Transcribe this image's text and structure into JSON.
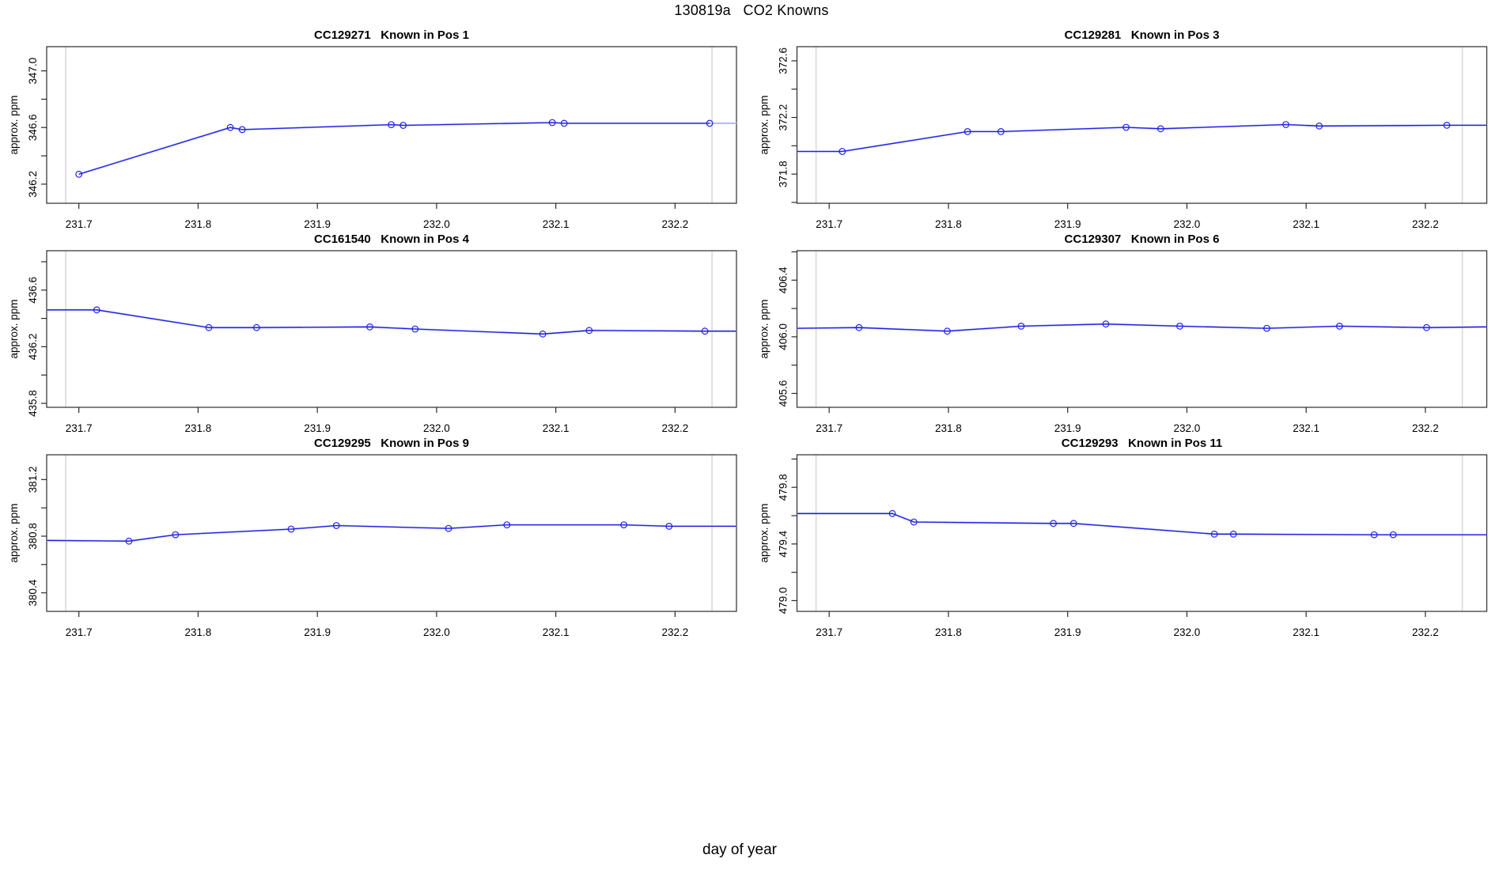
{
  "figure": {
    "main_title": "130819a   CO2 Knowns",
    "x_axis_label": "day of year",
    "colors": {
      "line": "#2121e6",
      "pale_line": "#b7bef4",
      "marker": "#2121e6",
      "boundary": "#d9d9d9",
      "box": "#2b2b2b",
      "text": "#000000"
    }
  },
  "chart_data": [
    {
      "type": "line",
      "id": "CC129271",
      "title": "CC129271   Known in Pos 1",
      "ylabel": "approx. ppm",
      "ylim": [
        346.065,
        347.171
      ],
      "ytick_labels": [
        {
          "value": 346.2,
          "label": "346.2"
        },
        {
          "value": 346.6,
          "label": "346.6"
        },
        {
          "value": 347.0,
          "label": "347.0"
        }
      ],
      "xticks": [
        {
          "value": 231.7,
          "label": "231.7"
        },
        {
          "value": 231.8,
          "label": "231.8"
        },
        {
          "value": 231.9,
          "label": "231.9"
        },
        {
          "value": 232.0,
          "label": "232.0"
        },
        {
          "value": 232.1,
          "label": "232.1"
        },
        {
          "value": 232.2,
          "label": "232.2"
        }
      ],
      "boundaries_x": [
        231.689,
        232.231
      ],
      "left_edge": null,
      "right_edge": 346.63,
      "right_edge_pale": true,
      "points": [
        [
          231.7,
          346.27
        ],
        [
          231.827,
          346.6
        ],
        [
          231.837,
          346.585
        ],
        [
          231.962,
          346.62
        ],
        [
          231.972,
          346.615
        ],
        [
          232.097,
          346.635
        ],
        [
          232.107,
          346.63
        ],
        [
          232.229,
          346.63
        ]
      ]
    },
    {
      "type": "line",
      "id": "CC129281",
      "title": "CC129281   Known in Pos 3",
      "ylabel": "approx. ppm",
      "ylim": [
        371.594,
        372.7
      ],
      "ytick_labels": [
        {
          "value": 371.8,
          "label": "371.8"
        },
        {
          "value": 372.2,
          "label": "372.2"
        },
        {
          "value": 372.6,
          "label": "372.6"
        }
      ],
      "xticks": [
        {
          "value": 231.7,
          "label": "231.7"
        },
        {
          "value": 231.8,
          "label": "231.8"
        },
        {
          "value": 231.9,
          "label": "231.9"
        },
        {
          "value": 232.0,
          "label": "232.0"
        },
        {
          "value": 232.1,
          "label": "232.1"
        },
        {
          "value": 232.2,
          "label": "232.2"
        }
      ],
      "boundaries_x": [
        231.689,
        232.231
      ],
      "left_edge": 371.96,
      "right_edge": 372.145,
      "right_edge_pale": false,
      "points": [
        [
          231.711,
          371.96
        ],
        [
          231.816,
          372.1
        ],
        [
          231.844,
          372.1
        ],
        [
          231.949,
          372.13
        ],
        [
          231.978,
          372.12
        ],
        [
          232.083,
          372.15
        ],
        [
          232.111,
          372.14
        ],
        [
          232.218,
          372.145
        ]
      ]
    },
    {
      "type": "line",
      "id": "CC161540",
      "title": "CC161540   Known in Pos 4",
      "ylabel": "approx. ppm",
      "ylim": [
        435.772,
        436.878
      ],
      "ytick_labels": [
        {
          "value": 435.8,
          "label": "435.8"
        },
        {
          "value": 436.2,
          "label": "436.2"
        },
        {
          "value": 436.6,
          "label": "436.6"
        }
      ],
      "xticks": [
        {
          "value": 231.7,
          "label": "231.7"
        },
        {
          "value": 231.8,
          "label": "231.8"
        },
        {
          "value": 231.9,
          "label": "231.9"
        },
        {
          "value": 232.0,
          "label": "232.0"
        },
        {
          "value": 232.1,
          "label": "232.1"
        },
        {
          "value": 232.2,
          "label": "232.2"
        }
      ],
      "boundaries_x": [
        231.689,
        232.231
      ],
      "left_edge": 436.46,
      "right_edge": 436.31,
      "right_edge_pale": false,
      "points": [
        [
          231.715,
          436.46
        ],
        [
          231.809,
          436.335
        ],
        [
          231.849,
          436.335
        ],
        [
          231.944,
          436.34
        ],
        [
          231.982,
          436.325
        ],
        [
          232.089,
          436.29
        ],
        [
          232.128,
          436.315
        ],
        [
          232.225,
          436.31
        ]
      ]
    },
    {
      "type": "line",
      "id": "CC129307",
      "title": "CC129307   Known in Pos 6",
      "ylabel": "approx. ppm",
      "ylim": [
        405.502,
        406.608
      ],
      "ytick_labels": [
        {
          "value": 405.6,
          "label": "405.6"
        },
        {
          "value": 406.0,
          "label": "406.0"
        },
        {
          "value": 406.4,
          "label": "406.4"
        }
      ],
      "xticks": [
        {
          "value": 231.7,
          "label": "231.7"
        },
        {
          "value": 231.8,
          "label": "231.8"
        },
        {
          "value": 231.9,
          "label": "231.9"
        },
        {
          "value": 232.0,
          "label": "232.0"
        },
        {
          "value": 232.1,
          "label": "232.1"
        },
        {
          "value": 232.2,
          "label": "232.2"
        }
      ],
      "boundaries_x": [
        231.689,
        232.231
      ],
      "left_edge": 406.06,
      "right_edge": 406.07,
      "right_edge_pale": false,
      "points": [
        [
          231.725,
          406.065
        ],
        [
          231.799,
          406.04
        ],
        [
          231.861,
          406.075
        ],
        [
          231.932,
          406.09
        ],
        [
          231.994,
          406.075
        ],
        [
          232.067,
          406.06
        ],
        [
          232.128,
          406.075
        ],
        [
          232.201,
          406.065
        ]
      ]
    },
    {
      "type": "line",
      "id": "CC129295",
      "title": "CC129295   Known in Pos 9",
      "ylabel": "approx. ppm",
      "ylim": [
        380.269,
        381.375
      ],
      "ytick_labels": [
        {
          "value": 380.4,
          "label": "380.4"
        },
        {
          "value": 380.8,
          "label": "380.8"
        },
        {
          "value": 381.2,
          "label": "381.2"
        }
      ],
      "xticks": [
        {
          "value": 231.7,
          "label": "231.7"
        },
        {
          "value": 231.8,
          "label": "231.8"
        },
        {
          "value": 231.9,
          "label": "231.9"
        },
        {
          "value": 232.0,
          "label": "232.0"
        },
        {
          "value": 232.1,
          "label": "232.1"
        },
        {
          "value": 232.2,
          "label": "232.2"
        }
      ],
      "boundaries_x": [
        231.689,
        232.231
      ],
      "left_edge": 380.77,
      "right_edge": 380.87,
      "right_edge_pale": false,
      "points": [
        [
          231.742,
          380.765
        ],
        [
          231.781,
          380.81
        ],
        [
          231.878,
          380.85
        ],
        [
          231.916,
          380.875
        ],
        [
          232.01,
          380.855
        ],
        [
          232.059,
          380.88
        ],
        [
          232.157,
          380.88
        ],
        [
          232.195,
          380.87
        ]
      ]
    },
    {
      "type": "line",
      "id": "CC129293",
      "title": "CC129293   Known in Pos 11",
      "ylabel": "approx. ppm",
      "ylim": [
        478.924,
        480.03
      ],
      "ytick_labels": [
        {
          "value": 479.0,
          "label": "479.0"
        },
        {
          "value": 479.4,
          "label": "479.4"
        },
        {
          "value": 479.8,
          "label": "479.8"
        }
      ],
      "xticks": [
        {
          "value": 231.7,
          "label": "231.7"
        },
        {
          "value": 231.8,
          "label": "231.8"
        },
        {
          "value": 231.9,
          "label": "231.9"
        },
        {
          "value": 232.0,
          "label": "232.0"
        },
        {
          "value": 232.1,
          "label": "232.1"
        },
        {
          "value": 232.2,
          "label": "232.2"
        }
      ],
      "boundaries_x": [
        231.689,
        232.231
      ],
      "left_edge": 479.615,
      "right_edge": 479.465,
      "right_edge_pale": false,
      "points": [
        [
          231.753,
          479.615
        ],
        [
          231.771,
          479.555
        ],
        [
          231.888,
          479.545
        ],
        [
          231.905,
          479.545
        ],
        [
          232.023,
          479.47
        ],
        [
          232.039,
          479.47
        ],
        [
          232.157,
          479.465
        ],
        [
          232.173,
          479.465
        ]
      ]
    }
  ]
}
